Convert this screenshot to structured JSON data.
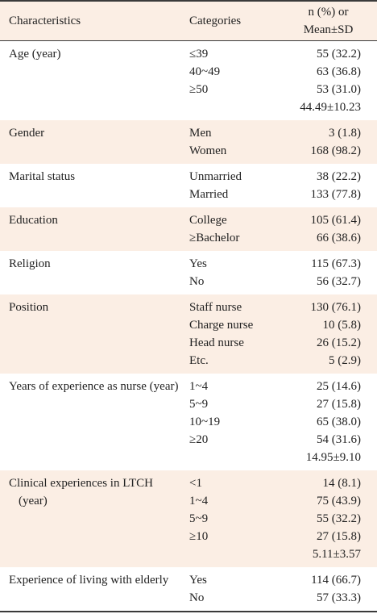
{
  "header": {
    "characteristics": "Characteristics",
    "categories": "Categories",
    "stat": [
      "n (%) or",
      "Mean±SD"
    ]
  },
  "groups": [
    {
      "label": "Age (year)",
      "categories": [
        "≤39",
        "40~49",
        "≥50"
      ],
      "values": [
        "55 (32.2)",
        "63 (36.8)",
        "53 (31.0)",
        "44.49±10.23"
      ]
    },
    {
      "label": "Gender",
      "categories": [
        "Men",
        "Women"
      ],
      "values": [
        "3 (1.8)",
        "168 (98.2)"
      ]
    },
    {
      "label": "Marital status",
      "categories": [
        "Unmarried",
        "Married"
      ],
      "values": [
        "38 (22.2)",
        "133 (77.8)"
      ]
    },
    {
      "label": "Education",
      "categories": [
        "College",
        "≥Bachelor"
      ],
      "values": [
        "105 (61.4)",
        "66 (38.6)"
      ]
    },
    {
      "label": "Religion",
      "categories": [
        "Yes",
        "No"
      ],
      "values": [
        "115 (67.3)",
        "56 (32.7)"
      ]
    },
    {
      "label": "Position",
      "categories": [
        "Staff nurse",
        "Charge nurse",
        "Head nurse",
        "Etc."
      ],
      "values": [
        "130 (76.1)",
        "10 (5.8)",
        "26 (15.2)",
        "5 (2.9)"
      ]
    },
    {
      "label": "Years of experience as nurse (year)",
      "categories": [
        "1~4",
        "5~9",
        "10~19",
        "≥20"
      ],
      "values": [
        "25 (14.6)",
        "27 (15.8)",
        "65 (38.0)",
        "54 (31.6)",
        "14.95±9.10"
      ]
    },
    {
      "label": "Clinical experiences in LTCH (year)",
      "categories": [
        "<1",
        "1~4",
        "5~9",
        "≥10"
      ],
      "values": [
        "14 (8.1)",
        "75 (43.9)",
        "55 (32.2)",
        "27 (15.8)",
        "5.11±3.57"
      ]
    },
    {
      "label": "Experience of living with elderly",
      "categories": [
        "Yes",
        "No"
      ],
      "values": [
        "114 (66.7)",
        "57 (33.3)"
      ]
    }
  ]
}
